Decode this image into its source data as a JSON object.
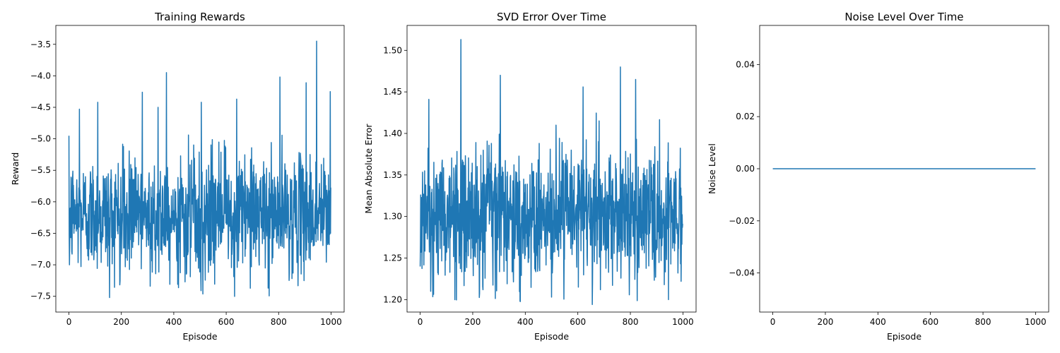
{
  "colors": {
    "line": "#1f77b4",
    "axes": "#000000",
    "background": "#ffffff"
  },
  "chart_data": [
    {
      "type": "line",
      "title": "Training Rewards",
      "xlabel": "Episode",
      "ylabel": "Reward",
      "xlim": [
        -50,
        1050
      ],
      "ylim": [
        -7.75,
        -3.2
      ],
      "xticks": [
        0,
        200,
        400,
        600,
        800,
        1000
      ],
      "yticks": [
        -7.5,
        -7.0,
        -6.5,
        -6.0,
        -5.5,
        -5.0,
        -4.5,
        -4.0,
        -3.5
      ],
      "grid": false,
      "series": [
        {
          "n": 1000,
          "summary": {
            "mean": -6.2,
            "std": 0.45,
            "min": -7.52,
            "max": -3.45
          },
          "peaks": [
            {
              "x": 2,
              "y": -7.0
            },
            {
              "x": 40,
              "y": -4.53
            },
            {
              "x": 110,
              "y": -4.42
            },
            {
              "x": 155,
              "y": -7.52
            },
            {
              "x": 280,
              "y": -4.26
            },
            {
              "x": 310,
              "y": -7.34
            },
            {
              "x": 340,
              "y": -4.5
            },
            {
              "x": 372,
              "y": -3.95
            },
            {
              "x": 415,
              "y": -7.31
            },
            {
              "x": 505,
              "y": -4.42
            },
            {
              "x": 640,
              "y": -4.37
            },
            {
              "x": 760,
              "y": -7.37
            },
            {
              "x": 805,
              "y": -4.02
            },
            {
              "x": 905,
              "y": -4.11
            },
            {
              "x": 945,
              "y": -3.45
            },
            {
              "x": 997,
              "y": -4.25
            }
          ]
        }
      ]
    },
    {
      "type": "line",
      "title": "SVD Error Over Time",
      "xlabel": "Episode",
      "ylabel": "Mean Absolute Error",
      "xlim": [
        -50,
        1050
      ],
      "ylim": [
        1.185,
        1.53
      ],
      "xticks": [
        0,
        200,
        400,
        600,
        800,
        1000
      ],
      "yticks": [
        1.2,
        1.25,
        1.3,
        1.35,
        1.4,
        1.45,
        1.5
      ],
      "grid": false,
      "series": [
        {
          "n": 1000,
          "summary": {
            "mean": 1.3,
            "std": 0.04,
            "min": 1.194,
            "max": 1.513
          },
          "peaks": [
            {
              "x": 40,
              "y": 1.21
            },
            {
              "x": 155,
              "y": 1.513
            },
            {
              "x": 305,
              "y": 1.47
            },
            {
              "x": 380,
              "y": 1.198
            },
            {
              "x": 500,
              "y": 1.203
            },
            {
              "x": 620,
              "y": 1.456
            },
            {
              "x": 655,
              "y": 1.194
            },
            {
              "x": 762,
              "y": 1.48
            },
            {
              "x": 820,
              "y": 1.465
            },
            {
              "x": 945,
              "y": 1.2
            },
            {
              "x": 993,
              "y": 1.222
            }
          ]
        }
      ]
    },
    {
      "type": "line",
      "title": "Noise Level Over Time",
      "xlabel": "Episode",
      "ylabel": "Noise Level",
      "xlim": [
        -50,
        1050
      ],
      "ylim": [
        -0.055,
        0.055
      ],
      "xticks": [
        0,
        200,
        400,
        600,
        800,
        1000
      ],
      "yticks": [
        -0.04,
        -0.02,
        0.0,
        0.02,
        0.04
      ],
      "grid": false,
      "series": [
        {
          "n": 1000,
          "x": [
            0,
            1000
          ],
          "y": [
            0.0,
            0.0
          ]
        }
      ]
    }
  ]
}
